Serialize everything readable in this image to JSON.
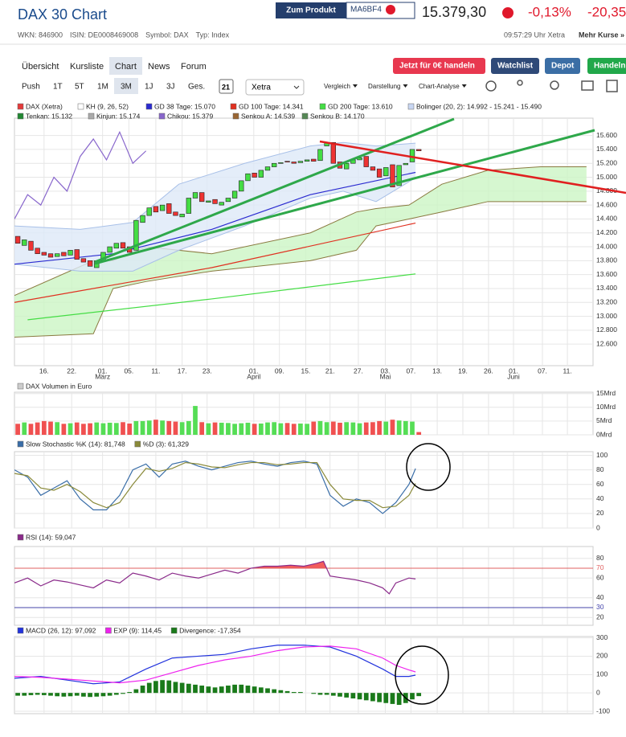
{
  "header": {
    "title": "DAX 30 Chart",
    "product_button": "Zum Produkt",
    "product_code": "MA6BF4",
    "price": "15.379,30",
    "change_pct": "-0,13%",
    "change_abs": "-20,35",
    "ids": [
      "WKN: 846900",
      "ISIN: DE0008469008",
      "Symbol: DAX",
      "Typ: Index"
    ],
    "time": "09:57:29 Uhr Xetra",
    "more": "Mehr Kurse »"
  },
  "tabs": [
    "Übersicht",
    "Kursliste",
    "Chart",
    "News",
    "Forum"
  ],
  "buttons": [
    "Jetzt für 0€ handeln",
    "Watchlist",
    "Depot",
    "Handeln"
  ],
  "toolbar": {
    "ranges": [
      "Push",
      "1T",
      "5T",
      "1M",
      "3M",
      "1J",
      "3J",
      "Ges."
    ],
    "calendar": "21",
    "exchange": "Xetra",
    "menus": [
      "Vergleich",
      "Darstellung",
      "Chart-Analyse"
    ]
  },
  "chart_data": [
    {
      "type": "candlestick",
      "legend": [
        {
          "label": "DAX (Xetra)",
          "color": "#e33b3b"
        },
        {
          "label": "KH (9, 26, 52)",
          "color": "#ffffff"
        },
        {
          "label": "GD 38 Tage: 15.070",
          "color": "#2b2bd0"
        },
        {
          "label": "GD 100 Tage: 14.341",
          "color": "#e03020"
        },
        {
          "label": "GD 200 Tage: 13.610",
          "color": "#44dd44"
        },
        {
          "label": "Bolinger (20, 2): 14.992 - 15.241 - 15.490",
          "color": "#c8d6f2"
        },
        {
          "label": "Tenkan: 15.132",
          "color": "#228833"
        },
        {
          "label": "Kinjun: 15.174",
          "color": "#aaaaaa"
        },
        {
          "label": "Chikou: 15.379",
          "color": "#8866cc"
        },
        {
          "label": "Senkou A: 14.539",
          "color": "#996633"
        },
        {
          "label": "Senkou B: 14.170",
          "color": "#558855"
        }
      ],
      "open": [
        14150,
        14020,
        14080,
        13980,
        13920,
        13900,
        13860,
        13920,
        13880,
        13960,
        13830,
        13800,
        13700,
        13800,
        13920,
        13980,
        14060,
        14000,
        13950,
        14350,
        14450,
        14580,
        14520,
        14620,
        14500,
        14430,
        14480,
        14700,
        14780,
        14640,
        14680,
        14600,
        14650,
        14700,
        14800,
        14950,
        15060,
        15000,
        15100,
        15150,
        15200,
        15230,
        15220,
        15210,
        15230,
        15260,
        15240,
        15450,
        15500,
        15220,
        15120,
        15200,
        15250,
        15300,
        15150,
        15120,
        15020,
        15180,
        14880,
        15180,
        15220,
        15400
      ],
      "close": [
        14050,
        14100,
        13950,
        13900,
        13880,
        13850,
        13900,
        13870,
        13950,
        13820,
        13780,
        13720,
        13800,
        13920,
        14000,
        14050,
        13980,
        13920,
        14380,
        14450,
        14560,
        14500,
        14600,
        14480,
        14450,
        14470,
        14700,
        14780,
        14650,
        14660,
        14620,
        14640,
        14700,
        14800,
        14950,
        15050,
        15000,
        15100,
        15150,
        15200,
        15210,
        15220,
        15200,
        15230,
        15250,
        15230,
        15400,
        15500,
        15200,
        15130,
        15200,
        15250,
        15280,
        15150,
        15100,
        15000,
        15140,
        14860,
        15170,
        15200,
        15400,
        15380
      ],
      "bands": [
        {
          "x": [
            0,
            12,
            15,
            20,
            30,
            45,
            52,
            55,
            60,
            65,
            72,
            80,
            87
          ],
          "upper": [
            13300,
            13800,
            13800,
            14000,
            13900,
            14200,
            14500,
            14550,
            14600,
            14900,
            15100,
            15150,
            15150
          ],
          "lower": [
            12700,
            12750,
            13400,
            13500,
            13650,
            13800,
            13950,
            14300,
            14400,
            14500,
            14650,
            14650,
            14650
          ],
          "fill": "#ccf5c4",
          "stroke": "#8a7a40"
        },
        {
          "x": [
            0,
            10,
            18,
            25,
            35,
            45,
            50,
            55,
            61
          ],
          "upper": [
            14300,
            14250,
            14350,
            14900,
            15200,
            15450,
            15500,
            15450,
            15490
          ],
          "lower": [
            13750,
            13650,
            13650,
            13950,
            14300,
            14700,
            14800,
            14650,
            14992
          ],
          "fill": "#dde8f8",
          "stroke": "#a8c0e8"
        }
      ],
      "series": [
        {
          "x": [
            2,
            30,
            61
          ],
          "values": [
            12950,
            13250,
            13610
          ],
          "color": "#44dd44"
        },
        {
          "x": [
            0,
            30,
            61
          ],
          "values": [
            13200,
            13700,
            14341
          ],
          "color": "#e03020"
        },
        {
          "x": [
            0,
            15,
            30,
            45,
            61
          ],
          "values": [
            13750,
            13900,
            14250,
            14750,
            15070
          ],
          "color": "#2b2bd0"
        },
        {
          "x": [
            0,
            2,
            4,
            6,
            8,
            10,
            12,
            14,
            16,
            18,
            20
          ],
          "values": [
            14400,
            14750,
            14600,
            15000,
            14800,
            15300,
            15550,
            15250,
            15650,
            15200,
            15379
          ],
          "color": "#8866cc"
        }
      ],
      "xlim": [
        0,
        88
      ],
      "xticks": [
        {
          "value": 4.5,
          "label": "16."
        },
        {
          "value": 8.7,
          "label": "22."
        },
        {
          "value": 13.4,
          "label": "01."
        },
        {
          "value": 17.4,
          "label": "05."
        },
        {
          "value": 21.5,
          "label": "11."
        },
        {
          "value": 25.5,
          "label": "17."
        },
        {
          "value": 29.3,
          "label": "23."
        },
        {
          "value": 36.4,
          "label": "01."
        },
        {
          "value": 40.3,
          "label": "09."
        },
        {
          "value": 44.3,
          "label": "15."
        },
        {
          "value": 48,
          "label": "21."
        },
        {
          "value": 52.3,
          "label": "27."
        },
        {
          "value": 56.4,
          "label": "03."
        },
        {
          "value": 60.3,
          "label": "07."
        },
        {
          "value": 64.3,
          "label": "13."
        },
        {
          "value": 68.2,
          "label": "19."
        },
        {
          "value": 72.1,
          "label": "26."
        },
        {
          "value": 75.9,
          "label": "01."
        },
        {
          "value": 80.3,
          "label": "07."
        },
        {
          "value": 84.1,
          "label": "11."
        }
      ],
      "xmonths": [
        {
          "value": 13.4,
          "label": "März"
        },
        {
          "value": 36.4,
          "label": "April"
        },
        {
          "value": 56.4,
          "label": "Mai"
        },
        {
          "value": 75.9,
          "label": "Juni"
        }
      ],
      "ylim": [
        12290,
        15850
      ],
      "yticks": [
        {
          "value": 12600,
          "label": "12.600"
        },
        {
          "value": 12800,
          "label": "12.800"
        },
        {
          "value": 13000,
          "label": "13.000"
        },
        {
          "value": 13200,
          "label": "13.200"
        },
        {
          "value": 13400,
          "label": "13.400"
        },
        {
          "value": 13600,
          "label": "13.600"
        },
        {
          "value": 13800,
          "label": "13.800"
        },
        {
          "value": 14000,
          "label": "14.000"
        },
        {
          "value": 14200,
          "label": "14.200"
        },
        {
          "value": 14400,
          "label": "14.400"
        },
        {
          "value": 14600,
          "label": "14.600"
        },
        {
          "value": 14800,
          "label": "14.800"
        },
        {
          "value": 15000,
          "label": "15.000"
        },
        {
          "value": 15200,
          "label": "15.200"
        },
        {
          "value": 15400,
          "label": "15.400"
        },
        {
          "value": 15600,
          "label": "15.600"
        }
      ]
    },
    {
      "type": "bar",
      "title": "DAX Volumen in Euro",
      "xlim": [
        0,
        88
      ],
      "values": [
        4,
        4.5,
        4,
        4.5,
        5,
        4.8,
        4.6,
        4,
        4.2,
        4.5,
        4,
        4.2,
        4.5,
        4.2,
        4.4,
        4.3,
        4.6,
        4.1,
        5,
        5,
        5.2,
        5.5,
        5.2,
        5,
        4.8,
        4.6,
        5,
        10.5,
        4.6,
        4.2,
        4.5,
        4.4,
        4.3,
        4,
        4.2,
        4.4,
        4,
        4.1,
        4.5,
        4.6,
        4.2,
        4.3,
        4,
        4.1,
        4,
        4.8,
        5,
        4.6,
        4.8,
        4.4,
        4.6,
        4.5,
        4.2,
        4.5,
        4.6,
        5,
        4.8,
        5.5,
        5.2,
        5,
        4.8,
        1
      ],
      "ylim": [
        0,
        15.5
      ],
      "yticks": [
        {
          "value": 0,
          "label": "0Mrd"
        },
        {
          "value": 5,
          "label": "5Mrd"
        },
        {
          "value": 10,
          "label": "10Mrd"
        },
        {
          "value": 15,
          "label": "15Mrd"
        }
      ]
    },
    {
      "type": "line",
      "xlim": [
        0,
        88
      ],
      "ylim": [
        0,
        105
      ],
      "yticks": [
        0,
        20,
        40,
        60,
        80,
        100
      ],
      "series": [
        {
          "name": "Slow Stochastic %K (14): 81,748",
          "color": "#3a6ea8",
          "x": [
            0,
            2,
            4,
            6,
            8,
            10,
            12,
            14,
            16,
            18,
            20,
            22,
            24,
            26,
            28,
            30,
            32,
            34,
            36,
            38,
            40,
            42,
            44,
            46,
            48,
            50,
            52,
            54,
            56,
            58,
            60,
            61
          ],
          "values": [
            80,
            70,
            45,
            55,
            65,
            40,
            25,
            25,
            45,
            80,
            88,
            70,
            88,
            92,
            85,
            80,
            85,
            90,
            92,
            88,
            85,
            90,
            92,
            88,
            45,
            30,
            40,
            35,
            20,
            35,
            60,
            81.748
          ]
        },
        {
          "name": "%D (3): 61,329",
          "color": "#8a8a3a",
          "x": [
            0,
            2,
            4,
            6,
            8,
            10,
            12,
            14,
            16,
            18,
            20,
            22,
            24,
            26,
            28,
            30,
            32,
            34,
            36,
            38,
            40,
            42,
            44,
            46,
            48,
            50,
            52,
            54,
            56,
            58,
            60,
            61
          ],
          "values": [
            75,
            72,
            55,
            52,
            60,
            50,
            35,
            28,
            35,
            60,
            82,
            78,
            82,
            90,
            88,
            84,
            83,
            87,
            90,
            90,
            87,
            88,
            90,
            90,
            60,
            40,
            38,
            38,
            28,
            30,
            45,
            61.329
          ]
        }
      ]
    },
    {
      "type": "line",
      "xlim": [
        0,
        88
      ],
      "ylim": [
        12,
        92
      ],
      "yticks": [
        20,
        {
          "value": 30,
          "color": "#4444aa"
        },
        40,
        60,
        {
          "value": 70,
          "color": "#e06060",
          "fill": "#f25c5c"
        },
        80
      ],
      "series": [
        {
          "name": "RSI (14): 59,047",
          "color": "#8a2a8a",
          "x": [
            0,
            2,
            4,
            6,
            8,
            10,
            12,
            14,
            16,
            18,
            20,
            22,
            24,
            26,
            28,
            30,
            32,
            34,
            36,
            38,
            40,
            42,
            44,
            46,
            47,
            48,
            50,
            52,
            54,
            56,
            57,
            58,
            60,
            61
          ],
          "values": [
            55,
            60,
            52,
            58,
            56,
            53,
            50,
            58,
            55,
            65,
            62,
            58,
            65,
            62,
            60,
            64,
            68,
            65,
            70,
            72,
            72,
            73,
            72,
            75,
            77,
            62,
            60,
            58,
            55,
            50,
            44,
            55,
            60,
            59.047
          ]
        }
      ]
    },
    {
      "type": "line",
      "xlim": [
        0,
        88
      ],
      "ylim": [
        -113,
        307
      ],
      "yticks": [
        -100,
        0,
        100,
        200,
        300
      ],
      "series": [
        {
          "name": "MACD (26, 12): 97,092",
          "color": "#2233dd",
          "x": [
            0,
            4,
            8,
            12,
            16,
            20,
            24,
            28,
            32,
            36,
            40,
            44,
            48,
            52,
            56,
            58,
            60,
            61
          ],
          "values": [
            80,
            90,
            70,
            50,
            60,
            130,
            190,
            200,
            210,
            240,
            260,
            260,
            250,
            200,
            130,
            90,
            90,
            97.092
          ]
        },
        {
          "name": "EXP (9): 114,45",
          "color": "#ee22ee",
          "x": [
            0,
            4,
            8,
            12,
            16,
            20,
            24,
            28,
            32,
            36,
            40,
            44,
            48,
            52,
            56,
            58,
            60,
            61
          ],
          "values": [
            90,
            85,
            75,
            65,
            55,
            70,
            110,
            150,
            180,
            200,
            230,
            250,
            255,
            240,
            190,
            150,
            125,
            114.45
          ]
        },
        {
          "name": "Divergence: -17,354",
          "color": "#1a7a1a",
          "type": "bar",
          "values": [
            -15,
            -15,
            -12,
            -10,
            -12,
            -15,
            -18,
            -20,
            -18,
            -15,
            -20,
            -22,
            -20,
            -18,
            -15,
            -10,
            -5,
            5,
            20,
            40,
            55,
            65,
            70,
            68,
            60,
            55,
            50,
            45,
            40,
            35,
            30,
            35,
            40,
            45,
            45,
            40,
            35,
            30,
            25,
            20,
            15,
            10,
            5,
            5,
            0,
            -5,
            -10,
            -10,
            -15,
            -20,
            -25,
            -30,
            -35,
            -40,
            -45,
            -50,
            -55,
            -60,
            -65,
            -55,
            -35,
            -17.354
          ]
        }
      ]
    }
  ]
}
